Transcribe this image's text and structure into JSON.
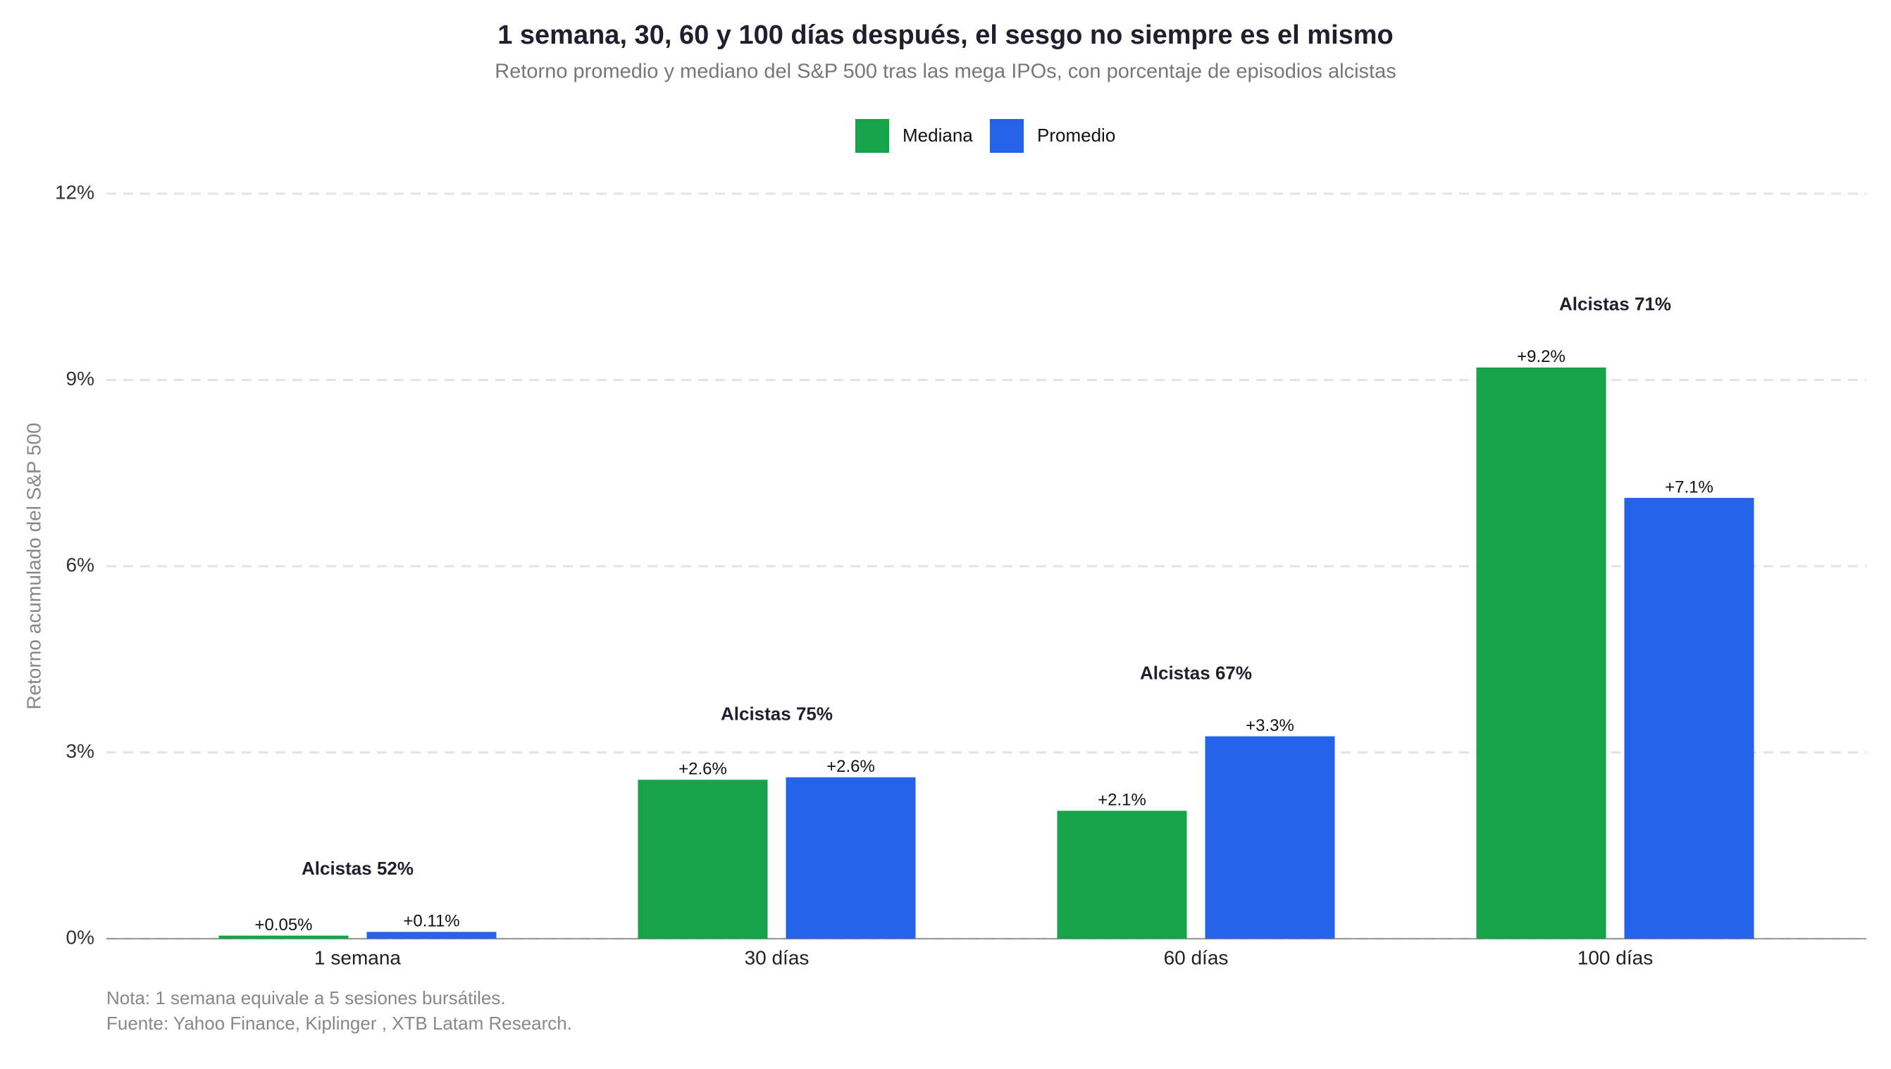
{
  "chart_data": {
    "type": "bar",
    "title": "1 semana, 30, 60 y 100 días después, el sesgo no siempre es el mismo",
    "subtitle": "Retorno promedio y mediano del S&P 500 tras las mega IPOs, con porcentaje de episodios alcistas",
    "y_label": "Retorno acumulado del S&P 500",
    "categories": [
      "1 semana",
      "30 días",
      "60 días",
      "100 días"
    ],
    "series": [
      {
        "name": "Mediana",
        "color": "#16a34a",
        "values": [
          0.05,
          2.56,
          2.06,
          9.2
        ],
        "value_labels": [
          "+0.05%",
          "+2.6%",
          "+2.1%",
          "+9.2%"
        ]
      },
      {
        "name": "Promedio",
        "color": "#2563eb",
        "values": [
          0.11,
          2.6,
          3.26,
          7.1
        ],
        "value_labels": [
          "+0.11%",
          "+2.6%",
          "+3.3%",
          "+7.1%"
        ]
      }
    ],
    "annotations": [
      "Alcistas 52%",
      "Alcistas 75%",
      "Alcistas 67%",
      "Alcistas 71%"
    ],
    "ylim": [
      0,
      12
    ],
    "yticks": [
      {
        "value": 0,
        "label": "0%"
      },
      {
        "value": 3,
        "label": "3%"
      },
      {
        "value": 6,
        "label": "6%"
      },
      {
        "value": 9,
        "label": "9%"
      },
      {
        "value": 12,
        "label": "12%"
      }
    ],
    "grid": true,
    "legend": "top",
    "notes": [
      "Nota: 1 semana equivale a 5 sesiones bursátiles.",
      "Fuente: Yahoo Finance, Kiplinger , XTB Latam Research."
    ]
  }
}
